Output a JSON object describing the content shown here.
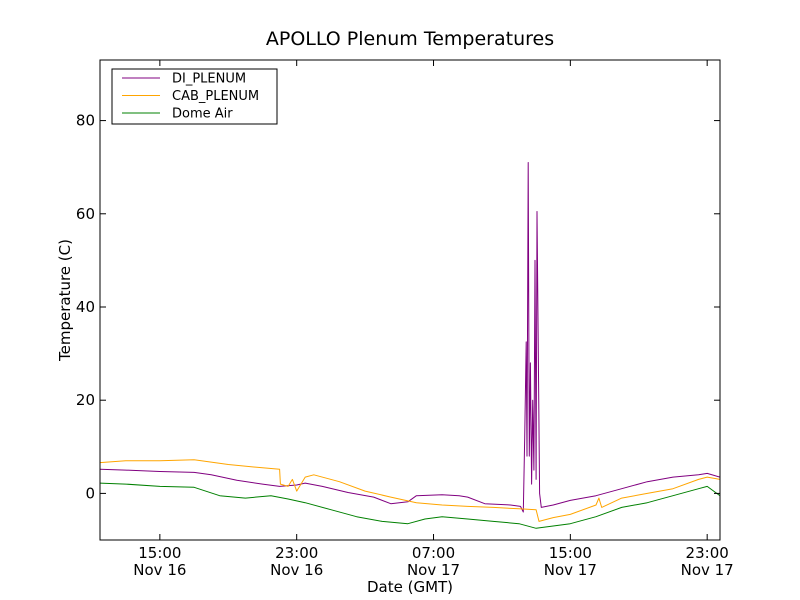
{
  "chart_data": {
    "type": "line",
    "title": "APOLLO Plenum Temperatures",
    "xlabel": "Date (GMT)",
    "ylabel": "Temperature (C)",
    "xlim": [
      "2011-11-16 11:30",
      "2011-11-17 23:45"
    ],
    "ylim": [
      -10,
      93
    ],
    "grid": false,
    "legend_position": "top-left",
    "x_ticks": [
      {
        "x": "2011-11-16 15:00",
        "time": "15:00",
        "date": "Nov 16"
      },
      {
        "x": "2011-11-16 23:00",
        "time": "23:00",
        "date": "Nov 16"
      },
      {
        "x": "2011-11-17 07:00",
        "time": "07:00",
        "date": "Nov 17"
      },
      {
        "x": "2011-11-17 15:00",
        "time": "15:00",
        "date": "Nov 17"
      },
      {
        "x": "2011-11-17 23:00",
        "time": "23:00",
        "date": "Nov 17"
      }
    ],
    "y_ticks": [
      0,
      20,
      40,
      60,
      80
    ],
    "series": [
      {
        "name": "DI_PLENUM",
        "color": "#800080",
        "points": [
          [
            "2011-11-16 11:30",
            5.2
          ],
          [
            "2011-11-16 13:00",
            5.0
          ],
          [
            "2011-11-16 15:00",
            4.7
          ],
          [
            "2011-11-16 17:00",
            4.5
          ],
          [
            "2011-11-16 18:00",
            4.0
          ],
          [
            "2011-11-16 19:30",
            2.8
          ],
          [
            "2011-11-16 21:00",
            2.0
          ],
          [
            "2011-11-16 22:00",
            1.5
          ],
          [
            "2011-11-16 23:00",
            1.8
          ],
          [
            "2011-11-16 23:30",
            2.2
          ],
          [
            "2011-11-17 00:30",
            1.5
          ],
          [
            "2011-11-17 02:00",
            0.2
          ],
          [
            "2011-11-17 03:30",
            -0.8
          ],
          [
            "2011-11-17 04:30",
            -2.2
          ],
          [
            "2011-11-17 05:30",
            -1.8
          ],
          [
            "2011-11-17 06:00",
            -0.5
          ],
          [
            "2011-11-17 07:30",
            -0.3
          ],
          [
            "2011-11-17 08:30",
            -0.5
          ],
          [
            "2011-11-17 09:00",
            -0.8
          ],
          [
            "2011-11-17 10:00",
            -2.2
          ],
          [
            "2011-11-17 11:30",
            -2.5
          ],
          [
            "2011-11-17 12:05",
            -2.8
          ],
          [
            "2011-11-17 12:15",
            -4.0
          ],
          [
            "2011-11-17 12:20",
            12.0
          ],
          [
            "2011-11-17 12:25",
            32.5
          ],
          [
            "2011-11-17 12:28",
            8.0
          ],
          [
            "2011-11-17 12:32",
            71.0
          ],
          [
            "2011-11-17 12:36",
            8.0
          ],
          [
            "2011-11-17 12:40",
            28.0
          ],
          [
            "2011-11-17 12:44",
            2.0
          ],
          [
            "2011-11-17 12:48",
            20.0
          ],
          [
            "2011-11-17 12:52",
            5.0
          ],
          [
            "2011-11-17 12:56",
            50.0
          ],
          [
            "2011-11-17 13:00",
            3.0
          ],
          [
            "2011-11-17 13:03",
            60.5
          ],
          [
            "2011-11-17 13:07",
            35.0
          ],
          [
            "2011-11-17 13:12",
            0.0
          ],
          [
            "2011-11-17 13:18",
            -3.0
          ],
          [
            "2011-11-17 14:00",
            -2.5
          ],
          [
            "2011-11-17 15:00",
            -1.5
          ],
          [
            "2011-11-17 16:30",
            -0.5
          ],
          [
            "2011-11-17 18:00",
            1.0
          ],
          [
            "2011-11-17 19:30",
            2.5
          ],
          [
            "2011-11-17 21:00",
            3.5
          ],
          [
            "2011-11-17 22:30",
            4.0
          ],
          [
            "2011-11-17 23:00",
            4.3
          ],
          [
            "2011-11-17 23:45",
            3.5
          ]
        ]
      },
      {
        "name": "CAB_PLENUM",
        "color": "#ffa500",
        "points": [
          [
            "2011-11-16 11:30",
            6.6
          ],
          [
            "2011-11-16 13:00",
            7.0
          ],
          [
            "2011-11-16 15:00",
            7.0
          ],
          [
            "2011-11-16 17:00",
            7.2
          ],
          [
            "2011-11-16 19:00",
            6.2
          ],
          [
            "2011-11-16 21:00",
            5.5
          ],
          [
            "2011-11-16 22:00",
            5.2
          ],
          [
            "2011-11-16 22:03",
            2.0
          ],
          [
            "2011-11-16 22:30",
            1.5
          ],
          [
            "2011-11-16 22:45",
            3.0
          ],
          [
            "2011-11-16 23:00",
            0.5
          ],
          [
            "2011-11-16 23:30",
            3.5
          ],
          [
            "2011-11-17 00:00",
            4.0
          ],
          [
            "2011-11-17 01:30",
            2.5
          ],
          [
            "2011-11-17 03:00",
            0.5
          ],
          [
            "2011-11-17 04:30",
            -0.8
          ],
          [
            "2011-11-17 06:00",
            -2.0
          ],
          [
            "2011-11-17 07:30",
            -2.5
          ],
          [
            "2011-11-17 09:00",
            -2.8
          ],
          [
            "2011-11-17 10:30",
            -3.0
          ],
          [
            "2011-11-17 12:00",
            -3.3
          ],
          [
            "2011-11-17 13:00",
            -3.5
          ],
          [
            "2011-11-17 13:10",
            -6.0
          ],
          [
            "2011-11-17 14:00",
            -5.2
          ],
          [
            "2011-11-17 15:00",
            -4.5
          ],
          [
            "2011-11-17 16:30",
            -2.5
          ],
          [
            "2011-11-17 16:40",
            -1.0
          ],
          [
            "2011-11-17 16:50",
            -3.0
          ],
          [
            "2011-11-17 18:00",
            -1.0
          ],
          [
            "2011-11-17 19:30",
            0.0
          ],
          [
            "2011-11-17 21:00",
            1.0
          ],
          [
            "2011-11-17 22:30",
            3.0
          ],
          [
            "2011-11-17 23:00",
            3.5
          ],
          [
            "2011-11-17 23:45",
            3.0
          ]
        ]
      },
      {
        "name": "Dome Air",
        "color": "#008000",
        "points": [
          [
            "2011-11-16 11:30",
            2.2
          ],
          [
            "2011-11-16 13:00",
            2.0
          ],
          [
            "2011-11-16 15:00",
            1.5
          ],
          [
            "2011-11-16 17:00",
            1.3
          ],
          [
            "2011-11-16 18:30",
            -0.5
          ],
          [
            "2011-11-16 20:00",
            -1.0
          ],
          [
            "2011-11-16 21:30",
            -0.5
          ],
          [
            "2011-11-16 22:30",
            -1.2
          ],
          [
            "2011-11-16 23:30",
            -2.0
          ],
          [
            "2011-11-17 01:00",
            -3.5
          ],
          [
            "2011-11-17 02:30",
            -5.0
          ],
          [
            "2011-11-17 04:00",
            -6.0
          ],
          [
            "2011-11-17 05:30",
            -6.5
          ],
          [
            "2011-11-17 06:30",
            -5.5
          ],
          [
            "2011-11-17 07:30",
            -5.0
          ],
          [
            "2011-11-17 09:00",
            -5.5
          ],
          [
            "2011-11-17 10:30",
            -6.0
          ],
          [
            "2011-11-17 12:00",
            -6.5
          ],
          [
            "2011-11-17 13:00",
            -7.5
          ],
          [
            "2011-11-17 14:00",
            -7.0
          ],
          [
            "2011-11-17 15:00",
            -6.5
          ],
          [
            "2011-11-17 16:30",
            -5.0
          ],
          [
            "2011-11-17 18:00",
            -3.0
          ],
          [
            "2011-11-17 19:30",
            -2.0
          ],
          [
            "2011-11-17 21:00",
            -0.5
          ],
          [
            "2011-11-17 22:30",
            1.0
          ],
          [
            "2011-11-17 23:00",
            1.5
          ],
          [
            "2011-11-17 23:45",
            -0.5
          ]
        ]
      }
    ]
  }
}
